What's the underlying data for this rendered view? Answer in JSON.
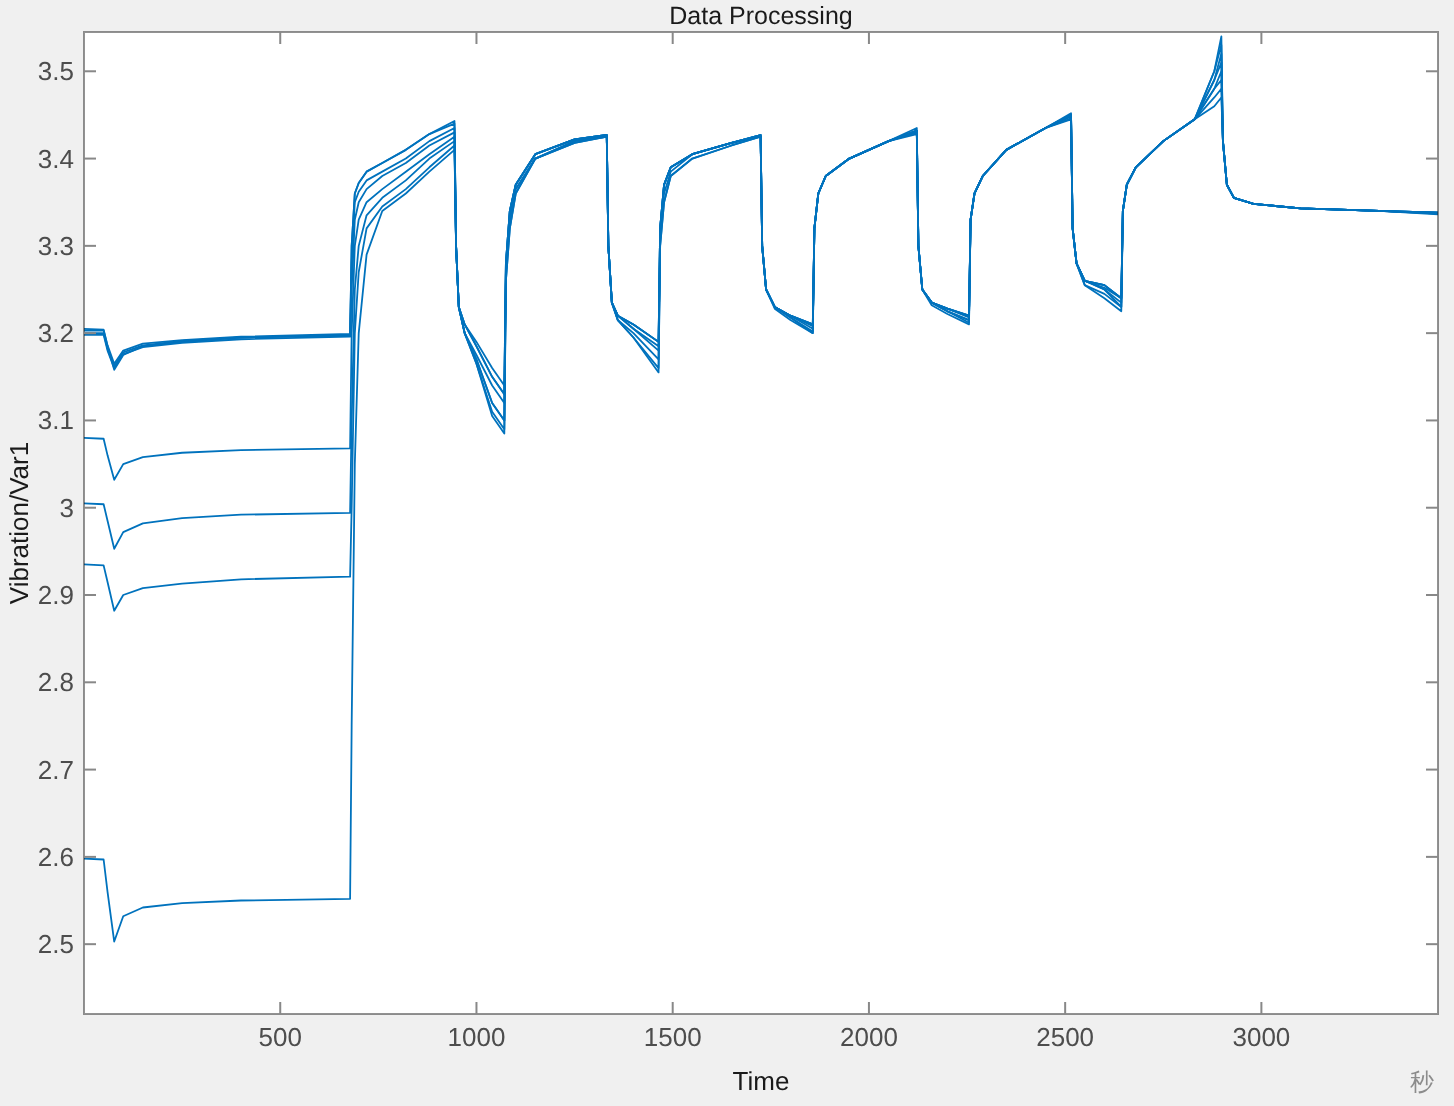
{
  "chart_data": {
    "type": "line",
    "title": "Data Processing",
    "xlabel": "Time",
    "ylabel": "Vibration/Var1",
    "annotations": [
      "秒"
    ],
    "xlim": [
      0,
      3450
    ],
    "ylim": [
      2.42,
      3.545
    ],
    "xticks": [
      500,
      1000,
      1500,
      2000,
      2500,
      3000
    ],
    "yticks": [
      2.5,
      2.6,
      2.7,
      2.8,
      2.9,
      3,
      3.1,
      3.2,
      3.3,
      3.4,
      3.5
    ],
    "grid": false,
    "x": [
      0,
      50,
      60,
      77,
      100,
      150,
      250,
      400,
      678,
      682,
      690,
      700,
      720,
      760,
      820,
      880,
      944,
      948,
      955,
      970,
      1000,
      1040,
      1071,
      1075,
      1085,
      1100,
      1150,
      1250,
      1332,
      1336,
      1345,
      1360,
      1400,
      1464,
      1468,
      1478,
      1495,
      1550,
      1650,
      1724,
      1728,
      1738,
      1760,
      1800,
      1857,
      1861,
      1871,
      1890,
      1950,
      2050,
      2122,
      2126,
      2136,
      2160,
      2200,
      2255,
      2259,
      2269,
      2290,
      2350,
      2450,
      2515,
      2519,
      2529,
      2550,
      2600,
      2643,
      2647,
      2657,
      2680,
      2750,
      2830,
      2880,
      2898,
      2902,
      2912,
      2930,
      2980,
      3100,
      3300,
      3450
    ],
    "series": [
      {
        "color": "#0072bd",
        "values": [
          3.203,
          3.203,
          3.185,
          3.158,
          3.175,
          3.185,
          3.19,
          3.195,
          3.197,
          3.3,
          3.36,
          3.372,
          3.385,
          3.395,
          3.41,
          3.428,
          3.443,
          3.3,
          3.23,
          3.21,
          3.19,
          3.16,
          3.14,
          3.28,
          3.34,
          3.37,
          3.405,
          3.422,
          3.427,
          3.3,
          3.235,
          3.22,
          3.21,
          3.19,
          3.32,
          3.37,
          3.39,
          3.405,
          3.418,
          3.427,
          3.3,
          3.25,
          3.23,
          3.22,
          3.21,
          3.32,
          3.36,
          3.38,
          3.4,
          3.42,
          3.432,
          3.3,
          3.25,
          3.235,
          3.228,
          3.22,
          3.33,
          3.36,
          3.38,
          3.41,
          3.435,
          3.45,
          3.32,
          3.28,
          3.26,
          3.255,
          3.24,
          3.34,
          3.37,
          3.39,
          3.42,
          3.445,
          3.5,
          3.54,
          3.42,
          3.37,
          3.355,
          3.348,
          3.343,
          3.34,
          3.338
        ]
      },
      {
        "color": "#0072bd",
        "values": [
          3.2,
          3.2,
          3.182,
          3.162,
          3.178,
          3.186,
          3.191,
          3.195,
          3.198,
          3.3,
          3.36,
          3.372,
          3.385,
          3.395,
          3.41,
          3.428,
          3.44,
          3.3,
          3.23,
          3.21,
          3.185,
          3.15,
          3.13,
          3.28,
          3.34,
          3.37,
          3.405,
          3.422,
          3.427,
          3.3,
          3.235,
          3.22,
          3.205,
          3.185,
          3.32,
          3.37,
          3.39,
          3.405,
          3.418,
          3.427,
          3.3,
          3.25,
          3.23,
          3.22,
          3.205,
          3.32,
          3.36,
          3.38,
          3.4,
          3.42,
          3.435,
          3.3,
          3.25,
          3.235,
          3.225,
          3.215,
          3.33,
          3.36,
          3.38,
          3.41,
          3.435,
          3.452,
          3.32,
          3.28,
          3.26,
          3.25,
          3.23,
          3.34,
          3.37,
          3.39,
          3.42,
          3.445,
          3.49,
          3.52,
          3.42,
          3.37,
          3.355,
          3.348,
          3.343,
          3.34,
          3.337
        ]
      },
      {
        "color": "#0072bd",
        "values": [
          3.205,
          3.204,
          3.186,
          3.165,
          3.18,
          3.188,
          3.192,
          3.196,
          3.199,
          3.28,
          3.35,
          3.362,
          3.375,
          3.385,
          3.4,
          3.42,
          3.435,
          3.3,
          3.23,
          3.2,
          3.17,
          3.12,
          3.1,
          3.27,
          3.33,
          3.365,
          3.4,
          3.42,
          3.425,
          3.3,
          3.235,
          3.215,
          3.2,
          3.17,
          3.31,
          3.36,
          3.385,
          3.405,
          3.418,
          3.425,
          3.3,
          3.25,
          3.23,
          3.218,
          3.202,
          3.32,
          3.36,
          3.38,
          3.4,
          3.42,
          3.428,
          3.3,
          3.25,
          3.235,
          3.225,
          3.212,
          3.33,
          3.36,
          3.38,
          3.41,
          3.435,
          3.445,
          3.32,
          3.28,
          3.255,
          3.245,
          3.23,
          3.34,
          3.37,
          3.39,
          3.42,
          3.445,
          3.48,
          3.5,
          3.42,
          3.37,
          3.355,
          3.348,
          3.343,
          3.34,
          3.336
        ]
      },
      {
        "color": "#0072bd",
        "values": [
          3.198,
          3.198,
          3.18,
          3.16,
          3.176,
          3.184,
          3.189,
          3.193,
          3.196,
          3.25,
          3.33,
          3.35,
          3.365,
          3.38,
          3.395,
          3.415,
          3.43,
          3.3,
          3.23,
          3.2,
          3.165,
          3.11,
          3.09,
          3.26,
          3.32,
          3.36,
          3.4,
          3.418,
          3.425,
          3.3,
          3.235,
          3.215,
          3.195,
          3.16,
          3.3,
          3.35,
          3.38,
          3.4,
          3.415,
          3.425,
          3.3,
          3.25,
          3.23,
          3.218,
          3.2,
          3.32,
          3.36,
          3.38,
          3.4,
          3.42,
          3.43,
          3.3,
          3.25,
          3.235,
          3.225,
          3.215,
          3.33,
          3.36,
          3.38,
          3.41,
          3.435,
          3.448,
          3.32,
          3.28,
          3.26,
          3.25,
          3.235,
          3.34,
          3.37,
          3.39,
          3.42,
          3.445,
          3.47,
          3.48,
          3.42,
          3.37,
          3.355,
          3.348,
          3.343,
          3.34,
          3.338
        ]
      },
      {
        "color": "#0072bd",
        "values": [
          3.08,
          3.079,
          3.06,
          3.032,
          3.05,
          3.058,
          3.063,
          3.066,
          3.068,
          3.2,
          3.3,
          3.33,
          3.35,
          3.365,
          3.385,
          3.405,
          3.425,
          3.3,
          3.23,
          3.2,
          3.165,
          3.105,
          3.085,
          3.26,
          3.32,
          3.36,
          3.4,
          3.418,
          3.425,
          3.3,
          3.235,
          3.215,
          3.195,
          3.155,
          3.3,
          3.35,
          3.38,
          3.4,
          3.415,
          3.425,
          3.3,
          3.25,
          3.228,
          3.215,
          3.2,
          3.32,
          3.36,
          3.38,
          3.4,
          3.42,
          3.43,
          3.3,
          3.25,
          3.232,
          3.222,
          3.21,
          3.33,
          3.36,
          3.38,
          3.41,
          3.435,
          3.446,
          3.32,
          3.28,
          3.255,
          3.24,
          3.225,
          3.34,
          3.37,
          3.39,
          3.42,
          3.445,
          3.46,
          3.47,
          3.42,
          3.37,
          3.355,
          3.348,
          3.343,
          3.34,
          3.337
        ]
      },
      {
        "color": "#0072bd",
        "values": [
          3.005,
          3.004,
          2.985,
          2.953,
          2.972,
          2.982,
          2.988,
          2.992,
          2.994,
          3.1,
          3.25,
          3.3,
          3.335,
          3.355,
          3.375,
          3.4,
          3.42,
          3.3,
          3.23,
          3.2,
          3.17,
          3.12,
          3.1,
          3.27,
          3.33,
          3.365,
          3.4,
          3.42,
          3.426,
          3.3,
          3.235,
          3.22,
          3.205,
          3.18,
          3.32,
          3.37,
          3.39,
          3.405,
          3.418,
          3.426,
          3.3,
          3.25,
          3.23,
          3.22,
          3.208,
          3.32,
          3.36,
          3.38,
          3.4,
          3.42,
          3.432,
          3.3,
          3.25,
          3.235,
          3.228,
          3.218,
          3.33,
          3.36,
          3.38,
          3.41,
          3.435,
          3.45,
          3.32,
          3.28,
          3.26,
          3.252,
          3.24,
          3.34,
          3.37,
          3.39,
          3.42,
          3.445,
          3.5,
          3.53,
          3.42,
          3.37,
          3.355,
          3.348,
          3.343,
          3.34,
          3.338
        ]
      },
      {
        "color": "#0072bd",
        "values": [
          2.935,
          2.934,
          2.915,
          2.882,
          2.9,
          2.908,
          2.913,
          2.918,
          2.921,
          3.0,
          3.2,
          3.27,
          3.32,
          3.345,
          3.365,
          3.39,
          3.415,
          3.3,
          3.23,
          3.2,
          3.175,
          3.14,
          3.12,
          3.28,
          3.34,
          3.37,
          3.405,
          3.422,
          3.427,
          3.3,
          3.235,
          3.22,
          3.21,
          3.19,
          3.32,
          3.37,
          3.39,
          3.405,
          3.418,
          3.427,
          3.3,
          3.25,
          3.23,
          3.22,
          3.21,
          3.32,
          3.36,
          3.38,
          3.4,
          3.42,
          3.432,
          3.3,
          3.25,
          3.235,
          3.228,
          3.22,
          3.33,
          3.36,
          3.38,
          3.41,
          3.435,
          3.45,
          3.32,
          3.28,
          3.26,
          3.255,
          3.24,
          3.34,
          3.37,
          3.39,
          3.42,
          3.445,
          3.49,
          3.51,
          3.42,
          3.37,
          3.355,
          3.348,
          3.343,
          3.34,
          3.338
        ]
      },
      {
        "color": "#0072bd",
        "values": [
          2.598,
          2.597,
          2.56,
          2.503,
          2.532,
          2.542,
          2.547,
          2.55,
          2.552,
          2.75,
          3.05,
          3.2,
          3.29,
          3.34,
          3.36,
          3.385,
          3.41,
          3.3,
          3.23,
          3.21,
          3.185,
          3.15,
          3.13,
          3.28,
          3.34,
          3.37,
          3.405,
          3.422,
          3.427,
          3.3,
          3.235,
          3.22,
          3.21,
          3.19,
          3.32,
          3.37,
          3.39,
          3.405,
          3.418,
          3.427,
          3.3,
          3.25,
          3.23,
          3.22,
          3.21,
          3.32,
          3.36,
          3.38,
          3.4,
          3.42,
          3.432,
          3.3,
          3.25,
          3.235,
          3.228,
          3.22,
          3.33,
          3.36,
          3.38,
          3.41,
          3.435,
          3.45,
          3.32,
          3.28,
          3.26,
          3.255,
          3.24,
          3.34,
          3.37,
          3.39,
          3.42,
          3.445,
          3.48,
          3.49,
          3.42,
          3.37,
          3.355,
          3.348,
          3.343,
          3.34,
          3.338
        ]
      }
    ]
  }
}
